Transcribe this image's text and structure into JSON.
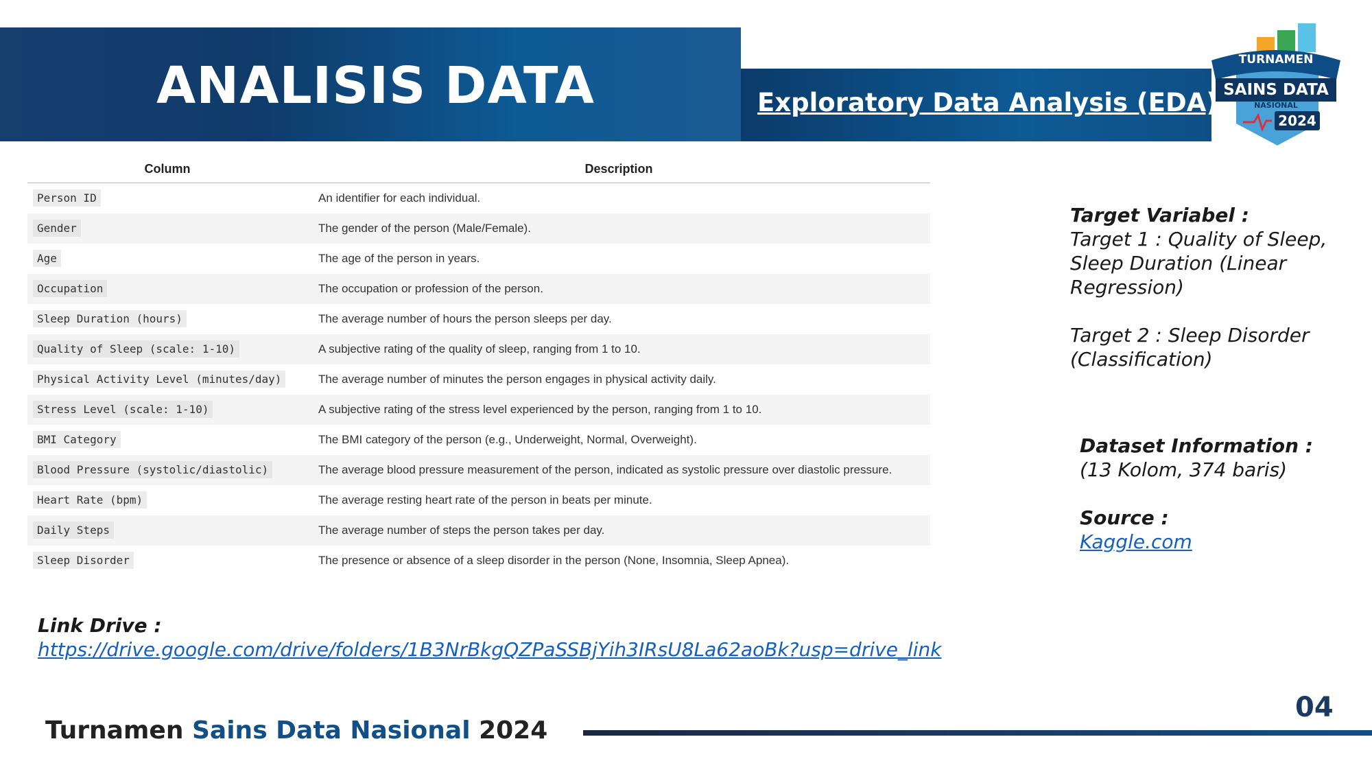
{
  "header": {
    "title": "ANALISIS DATA",
    "subtitle": "Exploratory Data Analysis (EDA)"
  },
  "logo": {
    "line1": "TURNAMEN",
    "line2": "SAINS DATA",
    "line3": "NASIONAL",
    "year": "2024"
  },
  "table": {
    "headers": [
      "Column",
      "Description"
    ],
    "rows": [
      {
        "column": "Person ID",
        "description": "An identifier for each individual."
      },
      {
        "column": "Gender",
        "description": "The gender of the person (Male/Female)."
      },
      {
        "column": "Age",
        "description": "The age of the person in years."
      },
      {
        "column": "Occupation",
        "description": "The occupation or profession of the person."
      },
      {
        "column": "Sleep Duration (hours)",
        "description": "The average number of hours the person sleeps per day."
      },
      {
        "column": "Quality of Sleep (scale: 1-10)",
        "description": "A subjective rating of the quality of sleep, ranging from 1 to 10."
      },
      {
        "column": "Physical Activity Level (minutes/day)",
        "description": "The average number of minutes the person engages in physical activity daily."
      },
      {
        "column": "Stress Level (scale: 1-10)",
        "description": "A subjective rating of the stress level experienced by the person, ranging from 1 to 10."
      },
      {
        "column": "BMI Category",
        "description": "The BMI category of the person (e.g., Underweight, Normal, Overweight)."
      },
      {
        "column": "Blood Pressure (systolic/diastolic)",
        "description": "The average blood pressure measurement of the person, indicated as systolic pressure over diastolic pressure."
      },
      {
        "column": "Heart Rate (bpm)",
        "description": "The average resting heart rate of the person in beats per minute."
      },
      {
        "column": "Daily Steps",
        "description": "The average number of steps the person takes per day."
      },
      {
        "column": "Sleep Disorder",
        "description": "The presence or absence of a sleep disorder in the person (None, Insomnia, Sleep Apnea)."
      }
    ]
  },
  "target": {
    "heading": "Target Variabel :",
    "line1": "Target 1 : Quality of Sleep, Sleep Duration (Linear Regression)",
    "line2": "Target 2 : Sleep Disorder (Classification)"
  },
  "dataset": {
    "heading": "Dataset Information :",
    "info": "(13 Kolom, 374 baris)",
    "source_heading": "Source :",
    "source_link": "Kaggle.com"
  },
  "drive": {
    "heading": "Link Drive :",
    "link": "https://drive.google.com/drive/folders/1B3NrBkgQZPaSSBjYih3IRsU8La62aoBk?usp=drive_link"
  },
  "footer": {
    "title_part1": "Turnamen ",
    "title_part2": "Sains Data Nasional",
    "title_part3": " 2024",
    "page_number": "04"
  },
  "colors": {
    "navy": "#0f3b6a",
    "blue": "#0d5a95",
    "link": "#1560bd",
    "accent_text": "#124f86"
  }
}
